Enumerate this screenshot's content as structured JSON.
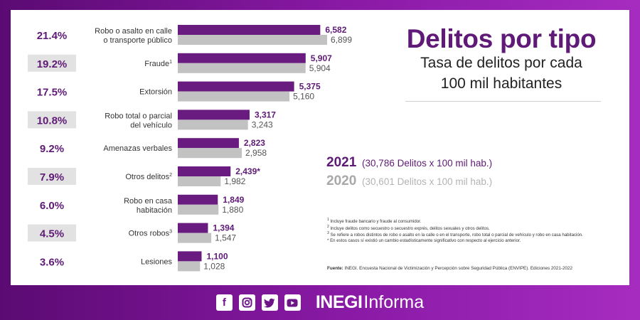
{
  "header": {
    "title": "Delitos por tipo",
    "subtitle_line1": "Tasa de delitos por cada",
    "subtitle_line2": "100 mil habitantes"
  },
  "legend": {
    "y2021": "2021",
    "y2021_note": "(30,786 Delitos x 100 mil hab.)",
    "y2020": "2020",
    "y2020_note": "(30,601 Delitos x 100 mil hab.)"
  },
  "notes": {
    "n1": "Incluye fraude bancario y fraude al consumidor.",
    "n2": "Incluye delitos como secuestro o secuestro exprés, delitos sexuales y otros delitos.",
    "n3": "Se refiere a robos distintos de robo o asalto en la calle o en el transporte, robo total o parcial de vehículo y robo en casa habitación.",
    "n4": "En estos casos sí existió un cambio estadísticamente significativo con respecto al ejercicio anterior."
  },
  "source": {
    "label": "Fuente:",
    "text": "INEGI. Encuesta Nacional de Victimización y Percepción sobre Seguridad Pública (ENVIPE). Ediciones 2021-2022"
  },
  "footer": {
    "brand_bold": "INEGI",
    "brand_regular": "Informa",
    "icons": [
      "facebook-icon",
      "instagram-icon",
      "twitter-icon",
      "youtube-icon"
    ]
  },
  "colors": {
    "series_2021": "#6a1b80",
    "series_2020": "#c2c2c2",
    "pct_box": "#e2e2e2",
    "accent": "#5f1a77"
  },
  "chart_data": {
    "type": "bar",
    "orientation": "horizontal",
    "title": "Delitos por tipo",
    "subtitle": "Tasa de delitos por cada 100 mil habitantes",
    "categories": [
      [
        "Robo o asalto en calle",
        "o transporte público"
      ],
      [
        "Fraude",
        ""
      ],
      [
        "Extorsión",
        ""
      ],
      [
        "Robo total o parcial",
        "del vehículo"
      ],
      [
        "Amenazas verbales",
        ""
      ],
      [
        "Otros delitos",
        ""
      ],
      [
        "Robo en casa",
        "habitación"
      ],
      [
        "Otros robos",
        ""
      ],
      [
        "Lesiones",
        ""
      ]
    ],
    "footnote_marks": [
      "",
      "1",
      "",
      "",
      "",
      "2",
      "",
      "3",
      ""
    ],
    "percentages": [
      "21.4%",
      "19.2%",
      "17.5%",
      "10.8%",
      "9.2%",
      "7.9%",
      "6.0%",
      "4.5%",
      "3.6%"
    ],
    "series": [
      {
        "name": "2021",
        "values": [
          6582,
          5907,
          5375,
          3317,
          2823,
          2439,
          1849,
          1394,
          1100
        ],
        "labels": [
          "6,582",
          "5,907",
          "5,375",
          "3,317",
          "2,823",
          "2,439*",
          "1,849",
          "1,394",
          "1,100"
        ]
      },
      {
        "name": "2020",
        "values": [
          6899,
          5904,
          5160,
          3243,
          2958,
          1982,
          1880,
          1547,
          1028
        ],
        "labels": [
          "6,899",
          "5,904",
          "5,160",
          "3,243",
          "2,958",
          "1,982",
          "1,880",
          "1,547",
          "1,028"
        ]
      }
    ],
    "xlim": [
      0,
      6899
    ],
    "grid": false,
    "legend": "right"
  }
}
